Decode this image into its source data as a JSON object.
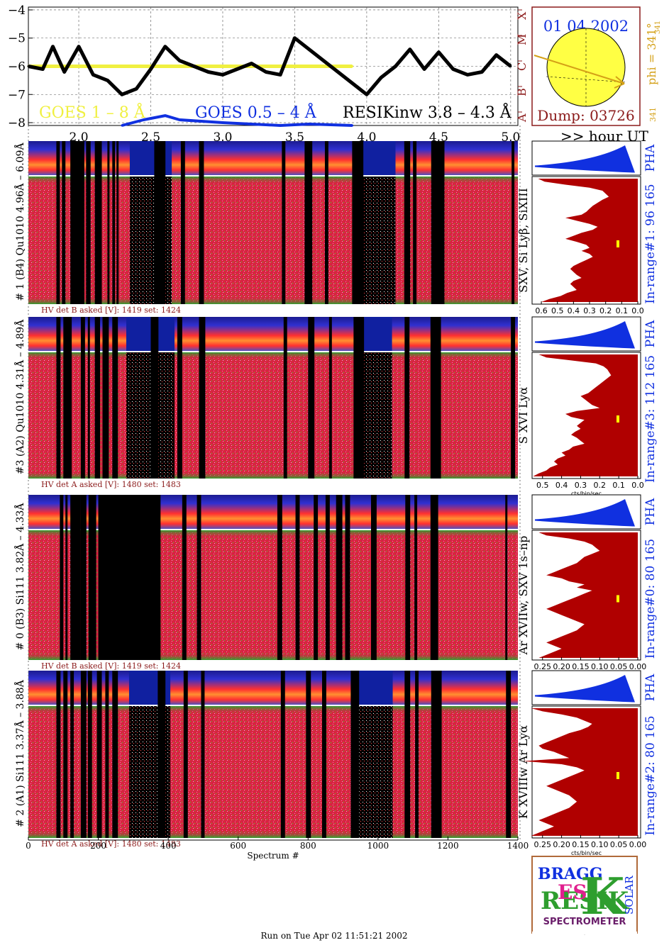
{
  "goes_panel": {
    "y_ticks": [
      "-4",
      "-5",
      "-6",
      "-7",
      "-8"
    ],
    "x_ticks": [
      "2.0",
      "2.5",
      "3.0",
      "3.5",
      "4.0",
      "4.5",
      "5.0"
    ],
    "hour_label": ">> hour UT",
    "legend_goes_long": "GOES 1 – 8 Å",
    "legend_goes_short": "GOES 0.5 – 4 Å",
    "legend_resik": "RESIKinw 3.8 – 4.3 Å",
    "class_letters": [
      "A",
      "B",
      "C",
      "M",
      "X"
    ]
  },
  "sun_panel": {
    "date": "01 04 2002",
    "dump": "Dump: 03726",
    "phi": "phi = 341°",
    "phi_sub": "341",
    "phi_small": "341"
  },
  "detectors": [
    {
      "title": "# 1 (B4) Qu1010 4.96Å – 6.09Å",
      "hv": "HV det B asked [V]:  1419 set:  1424",
      "lines": "SXV, Si Lyβ, SiXIII",
      "range": "In-range#1:  96 165",
      "pha": "PHA",
      "ticks": [
        "0.6",
        "0.5",
        "0.4",
        "0.3",
        "0.2",
        "0.1",
        "0.0"
      ],
      "unit": "cts/bin/sec"
    },
    {
      "title": "#3 (A2) Qu1010  4.31Å – 4.89Å",
      "hv": "HV det A asked [V]:  1480 set:  1483",
      "lines": "S XVI Lyα",
      "range": "In-range#3:  112 165",
      "pha": "PHA",
      "ticks": [
        "0.5",
        "0.4",
        "0.3",
        "0.2",
        "0.1",
        "0.0"
      ],
      "unit": "cts/bin/sec"
    },
    {
      "title": "# 0 (B3) Si111  3.82Å – 4.33Å",
      "hv": "HV det B asked [V]:  1419 set:  1424",
      "lines": "Ar XVIIw, SXV 1s–np",
      "range": "In-range#0:  80 165",
      "pha": "PHA",
      "ticks": [
        "0.25",
        "0.20",
        "0.15",
        "0.10",
        "0.05",
        "0.00"
      ],
      "unit": "cts/bin/sec"
    },
    {
      "title": "# 2 (A1) Si111  3.37Å – 3.88Å",
      "hv": "HV det A asked [V]:  1480 set:  1483",
      "lines": "K XVIIIw  Ar Lyα",
      "range": "In-range#2:  80 165",
      "pha": "PHA",
      "ticks": [
        "0.25",
        "0.20",
        "0.15",
        "0.10",
        "0.05",
        "0.00"
      ],
      "unit": "cts/bin/sec"
    }
  ],
  "spectrum_axis": {
    "ticks": [
      "0",
      "200",
      "400",
      "600",
      "800",
      "1000",
      "1200",
      "1400"
    ],
    "label": "Spectrum #"
  },
  "logo": {
    "bragg": "BRAGG",
    "resik": "RESIK",
    "solar": "SOLAR",
    "spectrometer": "SPECTROMETER"
  },
  "footer": "Run on Tue Apr 02 11:51:21 2002",
  "colors": {
    "goes_long": "#f0f040",
    "goes_short": "#1030e0",
    "resik": "#000000",
    "maroon": "#8b1a1a",
    "orange": "#d4a017",
    "spectrum_fill": "#b00000",
    "pha": "#1030e0"
  },
  "chart_data": [
    {
      "type": "line",
      "title": "",
      "xlabel": ">> hour UT",
      "ylabel": "",
      "xlim": [
        1.65,
        5.05
      ],
      "ylim": [
        -8.1,
        -3.9
      ],
      "series": [
        {
          "name": "GOES 1 – 8 Å",
          "x": [
            1.65,
            3.9
          ],
          "values": [
            -6.0,
            -6.0
          ]
        },
        {
          "name": "GOES 0.5 – 4 Å",
          "x": [
            2.3,
            2.45,
            2.6,
            2.7,
            3.0,
            3.4,
            3.6,
            3.9
          ],
          "values": [
            -8.1,
            -7.9,
            -7.75,
            -7.9,
            -8.0,
            -8.1,
            -8.05,
            -8.1
          ]
        },
        {
          "name": "RESIKinw 3.8 – 4.3 Å",
          "x": [
            1.65,
            1.75,
            1.82,
            1.9,
            2.0,
            2.1,
            2.2,
            2.3,
            2.4,
            2.5,
            2.6,
            2.7,
            2.8,
            2.9,
            3.0,
            3.1,
            3.2,
            3.3,
            3.4,
            3.5,
            4.0,
            4.1,
            4.2,
            4.3,
            4.4,
            4.5,
            4.6,
            4.7,
            4.8,
            4.9,
            5.0
          ],
          "values": [
            -6.0,
            -6.1,
            -5.3,
            -6.2,
            -5.3,
            -6.3,
            -6.5,
            -7.0,
            -6.8,
            -6.1,
            -5.3,
            -5.8,
            -6.0,
            -6.2,
            -6.3,
            -6.1,
            -5.9,
            -6.2,
            -6.3,
            -5.0,
            -7.0,
            -6.4,
            -6.0,
            -5.4,
            -6.1,
            -5.5,
            -6.1,
            -6.3,
            -6.2,
            -5.6,
            -6.0
          ]
        }
      ]
    },
    {
      "type": "area",
      "title": "",
      "xlabel": "cts/bin/sec",
      "x": [
        0,
        5,
        10,
        20,
        30,
        40,
        50,
        60,
        70,
        80,
        90,
        100,
        110,
        120,
        130,
        140,
        150,
        160,
        170,
        180,
        190,
        200,
        210,
        220,
        230,
        240,
        250,
        260,
        270,
        280,
        290,
        300,
        310,
        320,
        330,
        340,
        350,
        360,
        370,
        380,
        390,
        400
      ],
      "series": [
        {
          "name": "In-range#1",
          "values": [
            0.62,
            0.58,
            0.45,
            0.3,
            0.22,
            0.2,
            0.18,
            0.22,
            0.25,
            0.28,
            0.3,
            0.32,
            0.35,
            0.45,
            0.38,
            0.3,
            0.25,
            0.28,
            0.35,
            0.4,
            0.45,
            0.38,
            0.32,
            0.3,
            0.35,
            0.3,
            0.28,
            0.32,
            0.36,
            0.4,
            0.42,
            0.4,
            0.38,
            0.35,
            0.4,
            0.42,
            0.4,
            0.38,
            0.44,
            0.48,
            0.55,
            0.6
          ]
        },
        {
          "name": "In-range#3",
          "values": [
            0.52,
            0.48,
            0.35,
            0.22,
            0.18,
            0.16,
            0.15,
            0.14,
            0.16,
            0.18,
            0.2,
            0.22,
            0.24,
            0.26,
            0.3,
            0.28,
            0.26,
            0.24,
            0.2,
            0.32,
            0.38,
            0.35,
            0.28,
            0.3,
            0.32,
            0.3,
            0.33,
            0.35,
            0.32,
            0.3,
            0.28,
            0.34,
            0.36,
            0.4,
            0.38,
            0.42,
            0.44,
            0.42,
            0.46,
            0.48,
            0.52,
            0.55
          ]
        },
        {
          "name": "In-range#0",
          "values": [
            0.26,
            0.24,
            0.18,
            0.14,
            0.12,
            0.11,
            0.1,
            0.12,
            0.14,
            0.15,
            0.16,
            0.18,
            0.2,
            0.22,
            0.24,
            0.2,
            0.18,
            0.14,
            0.16,
            0.12,
            0.14,
            0.16,
            0.18,
            0.2,
            0.22,
            0.24,
            0.22,
            0.2,
            0.18,
            0.16,
            0.14,
            0.15,
            0.16,
            0.18,
            0.2,
            0.22,
            0.24,
            0.22,
            0.2,
            0.22,
            0.24,
            0.26
          ]
        },
        {
          "name": "In-range#2",
          "values": [
            0.28,
            0.25,
            0.2,
            0.16,
            0.14,
            0.12,
            0.13,
            0.15,
            0.18,
            0.2,
            0.22,
            0.24,
            0.26,
            0.25,
            0.22,
            0.2,
            0.18,
            0.3,
            0.2,
            0.16,
            0.14,
            0.16,
            0.18,
            0.2,
            0.22,
            0.24,
            0.22,
            0.2,
            0.18,
            0.17,
            0.16,
            0.17,
            0.18,
            0.2,
            0.22,
            0.24,
            0.26,
            0.24,
            0.22,
            0.24,
            0.26,
            0.28
          ]
        }
      ]
    }
  ]
}
